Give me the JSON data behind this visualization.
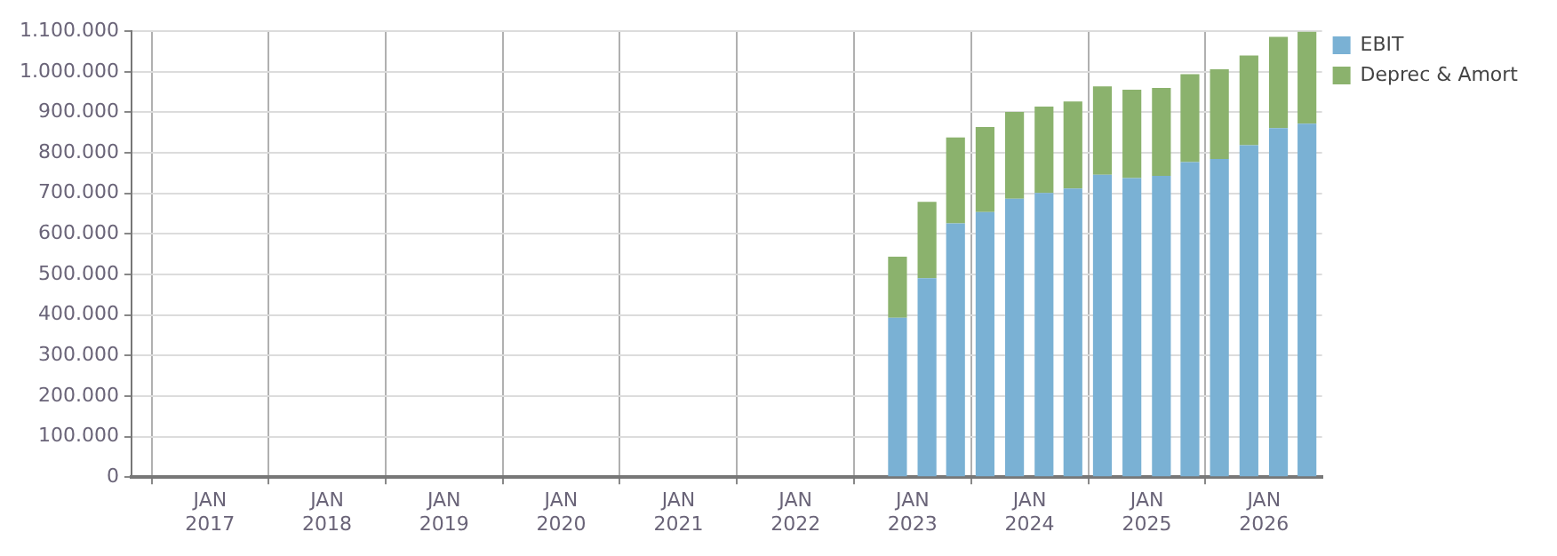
{
  "chart_data": {
    "type": "bar",
    "stacked": true,
    "legend": "top right",
    "grid": true,
    "x": [
      "2022-11-15",
      "2023-02-15",
      "2023-05-15",
      "2023-08-15",
      "2023-11-15",
      "2024-02-15",
      "2024-05-15",
      "2024-08-15",
      "2024-11-15",
      "2025-02-15",
      "2025-05-15",
      "2025-08-15",
      "2025-11-15",
      "2026-02-15",
      "2026-05-15"
    ],
    "series": [
      {
        "name": "EBIT",
        "color": "#7ab1d4",
        "values": [
          393000,
          491000,
          626000,
          654000,
          687000,
          701000,
          712000,
          746000,
          738000,
          743000,
          777000,
          785000,
          819000,
          861000,
          872000
        ]
      },
      {
        "name": "Deprec & Amort",
        "color": "#8bb26d",
        "values": [
          151000,
          188000,
          212000,
          210000,
          214000,
          213000,
          215000,
          218000,
          218000,
          217000,
          217000,
          221000,
          221000,
          225000,
          227000
        ]
      }
    ],
    "xlim": [
      "2016-05-01",
      "2026-07-01"
    ],
    "xticks": [
      {
        "value": "2017-01-01",
        "label": "JAN 2017"
      },
      {
        "value": "2018-01-01",
        "label": "JAN 2018"
      },
      {
        "value": "2019-01-01",
        "label": "JAN 2019"
      },
      {
        "value": "2020-01-01",
        "label": "JAN 2020"
      },
      {
        "value": "2021-01-01",
        "label": "JAN 2021"
      },
      {
        "value": "2022-01-01",
        "label": "JAN 2022"
      },
      {
        "value": "2023-01-01",
        "label": "JAN 2023"
      },
      {
        "value": "2024-01-01",
        "label": "JAN 2024"
      },
      {
        "value": "2025-01-01",
        "label": "JAN 2025"
      },
      {
        "value": "2026-01-01",
        "label": "JAN 2026"
      }
    ],
    "ylim": [
      0,
      1100000
    ],
    "yticks": [
      0,
      {
        "value": 100000,
        "label": "100.000"
      },
      {
        "value": 200000,
        "label": "200.000"
      },
      {
        "value": 300000,
        "label": "300.000"
      },
      {
        "value": 400000,
        "label": "400.000"
      },
      {
        "value": 500000,
        "label": "500.000"
      },
      {
        "value": 600000,
        "label": "600.000"
      },
      {
        "value": 700000,
        "label": "700.000"
      },
      {
        "value": 800000,
        "label": "800.000"
      },
      {
        "value": 900000,
        "label": "900.000"
      },
      {
        "value": 1000000,
        "label": "1.000.000"
      },
      {
        "value": 1100000,
        "label": "1.100.000"
      }
    ]
  }
}
